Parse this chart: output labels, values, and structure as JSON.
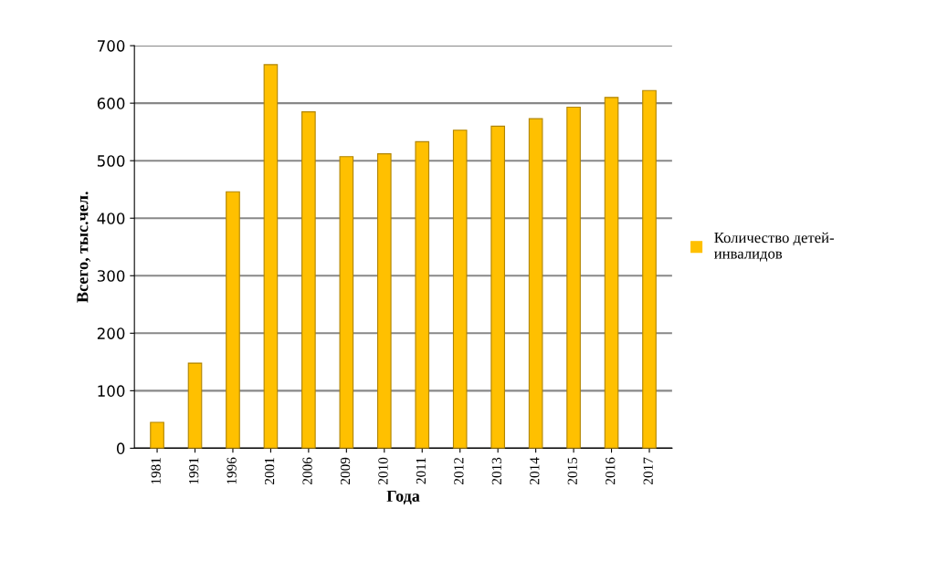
{
  "chart_data": {
    "type": "bar",
    "xlabel": "Года",
    "ylabel": "Всего, тыс.чел.",
    "categories": [
      "1981",
      "1991",
      "1996",
      "2001",
      "2006",
      "2009",
      "2010",
      "2011",
      "2012",
      "2013",
      "2014",
      "2015",
      "2016",
      "2017"
    ],
    "series": [
      {
        "name": "Количество детей-\nинвалидов",
        "color": "#ffc000",
        "values": [
          45,
          148,
          446,
          667,
          585,
          507,
          512,
          533,
          553,
          560,
          573,
          593,
          610,
          622
        ]
      }
    ],
    "ylim": [
      0,
      700
    ],
    "yticks": [
      0,
      100,
      200,
      300,
      400,
      500,
      600,
      700
    ],
    "grid": "y",
    "legend": "right"
  }
}
